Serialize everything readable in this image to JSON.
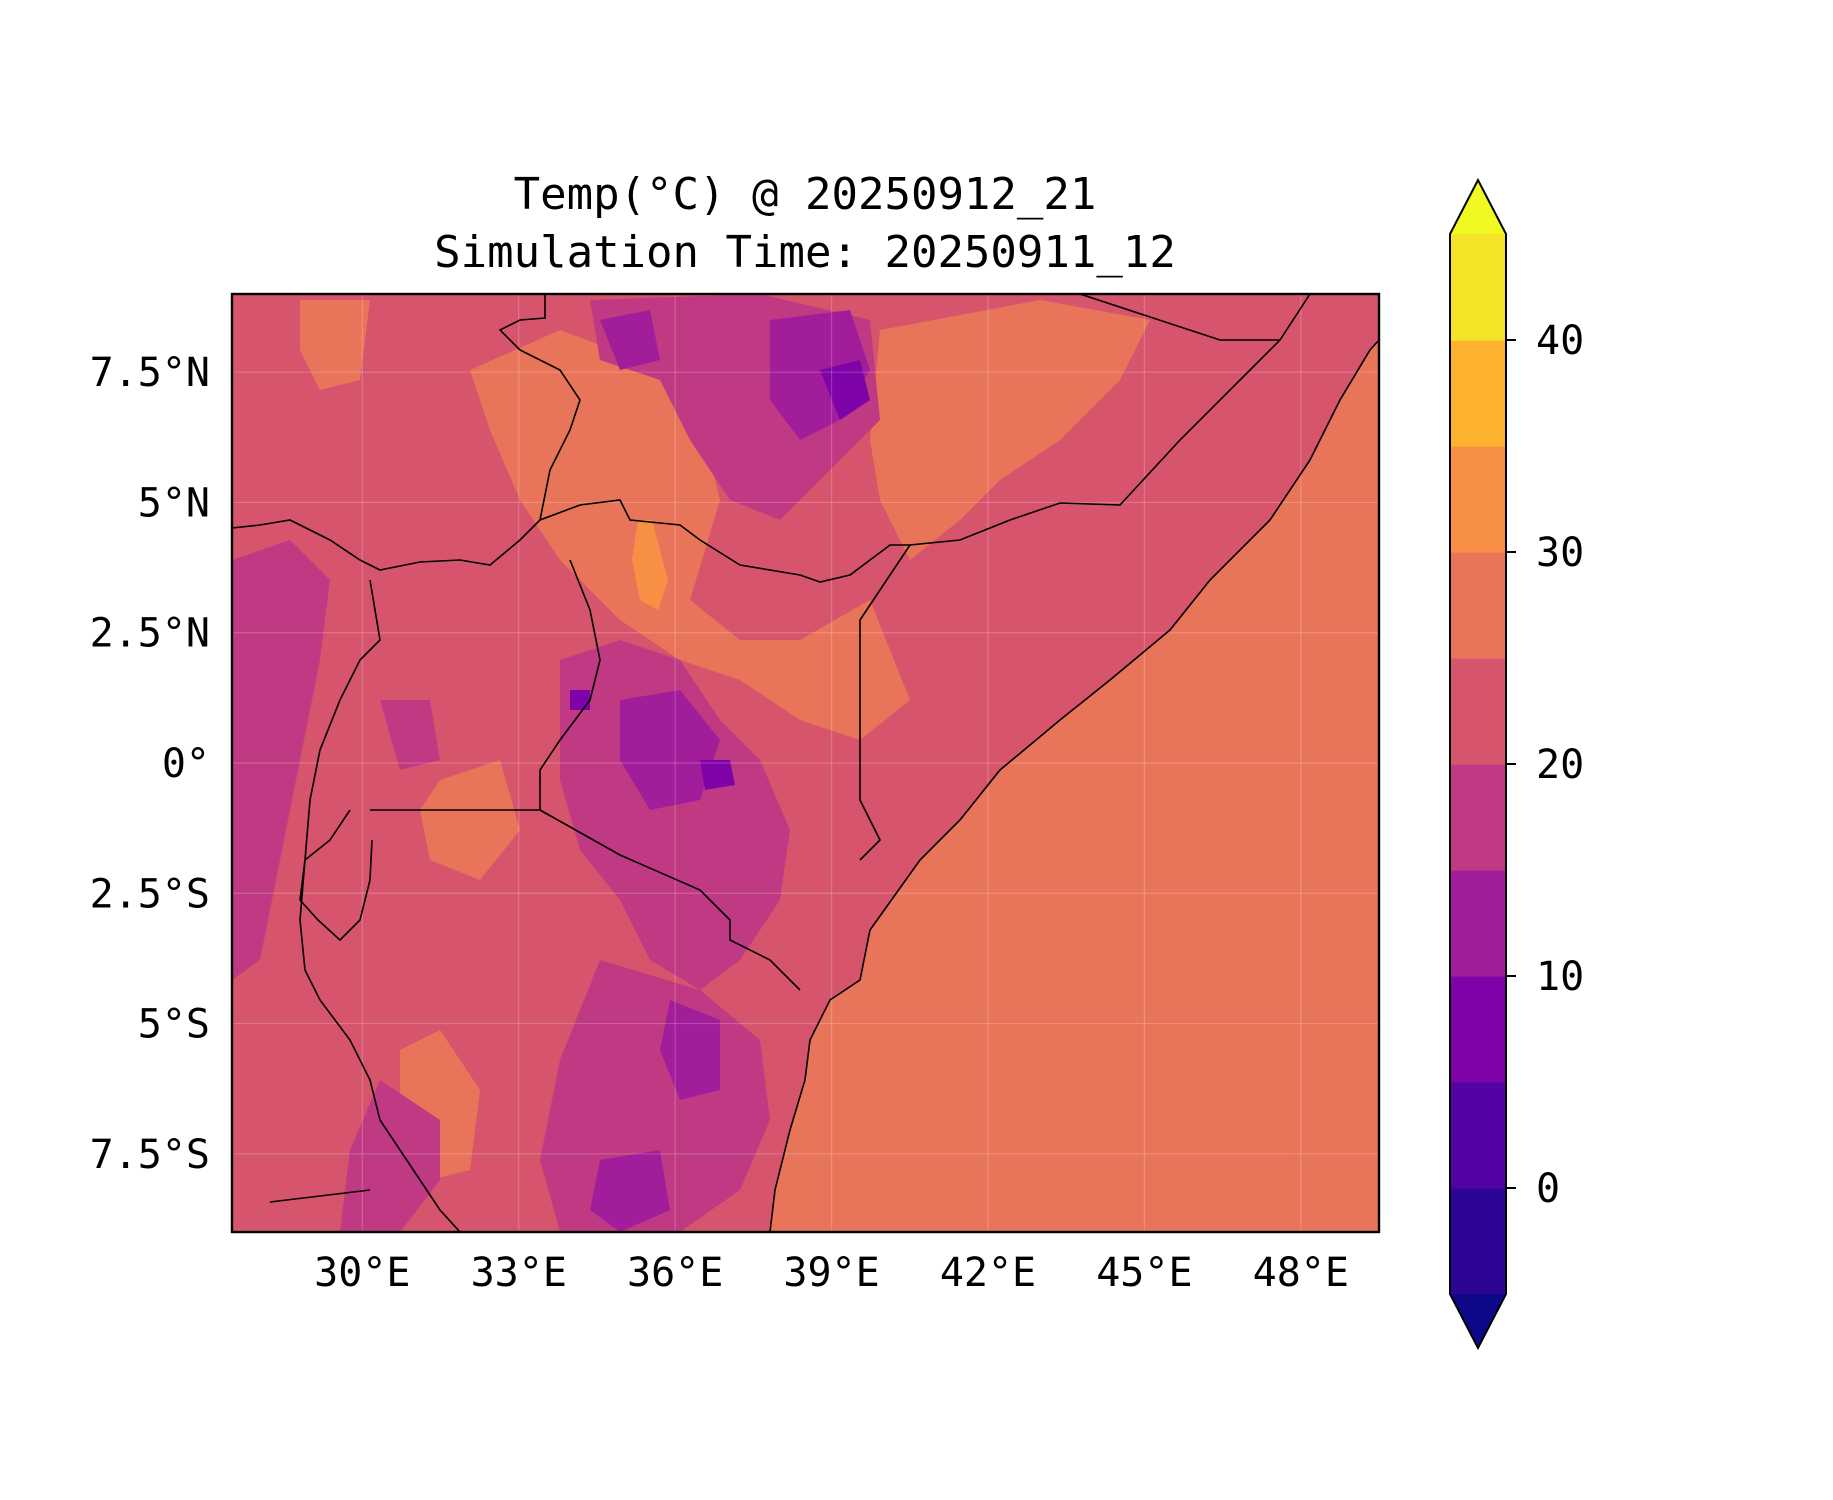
{
  "title": {
    "line1": "Temp(°C) @ 20250912_21",
    "line2": "Simulation Time: 20250911_12"
  },
  "map": {
    "lon_range": [
      27.5,
      49.5
    ],
    "lat_range": [
      -9,
      9
    ],
    "lon_ticks": [
      {
        "value": 30,
        "label": "30°E"
      },
      {
        "value": 33,
        "label": "33°E"
      },
      {
        "value": 36,
        "label": "36°E"
      },
      {
        "value": 39,
        "label": "39°E"
      },
      {
        "value": 42,
        "label": "42°E"
      },
      {
        "value": 45,
        "label": "45°E"
      },
      {
        "value": 48,
        "label": "48°E"
      }
    ],
    "lat_ticks": [
      {
        "value": 7.5,
        "label": "7.5°N"
      },
      {
        "value": 5,
        "label": "5°N"
      },
      {
        "value": 2.5,
        "label": "2.5°N"
      },
      {
        "value": 0,
        "label": "0°"
      },
      {
        "value": -2.5,
        "label": "2.5°S"
      },
      {
        "value": -5,
        "label": "5°S"
      },
      {
        "value": -7.5,
        "label": "7.5°S"
      }
    ],
    "gridlines": true,
    "ocean_color": "#e87559",
    "land_color": "#d6556d"
  },
  "colorbar": {
    "min": -5,
    "max": 45,
    "levels": [
      -5,
      0,
      5,
      10,
      15,
      20,
      25,
      30,
      35,
      40,
      45
    ],
    "colors": [
      "#2c0594",
      "#5302a3",
      "#7e03a8",
      "#a21d9a",
      "#c03a83",
      "#d6556d",
      "#e87559",
      "#f79044",
      "#fdb32f",
      "#f4e326"
    ],
    "under_color": "#0d0887",
    "over_color": "#f0f921",
    "ticks": [
      {
        "value": 0,
        "label": "0"
      },
      {
        "value": 10,
        "label": "10"
      },
      {
        "value": 20,
        "label": "20"
      },
      {
        "value": 30,
        "label": "30"
      },
      {
        "value": 40,
        "label": "40"
      }
    ],
    "extend": "both"
  }
}
